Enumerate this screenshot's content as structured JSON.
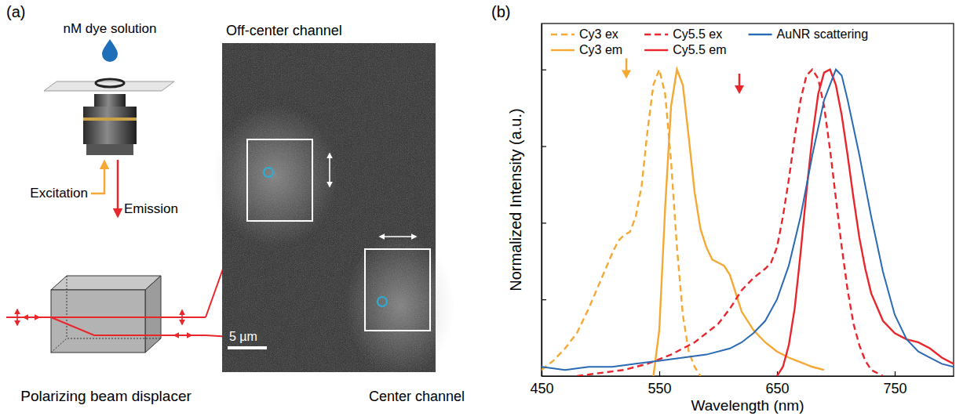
{
  "panel_labels": [
    "(a)",
    "(b)"
  ],
  "panel_a": {
    "sample": "nM dye solution",
    "excitation": "Excitation",
    "emission": "Emission",
    "optic": "Polarizing beam displacer",
    "image_top": "Off-center channel",
    "image_bottom": "Center channel",
    "scale_bar": "5 µm"
  },
  "chart_data": {
    "type": "line",
    "x_label": "Wavelength (nm)",
    "y_label": "Normalized Intensity (a.u.)",
    "xlim": [
      450,
      800
    ],
    "ylim": [
      0,
      1.15
    ],
    "xticks": [
      450,
      550,
      650,
      750
    ],
    "yticks": [
      0.25,
      0.5,
      0.75,
      1
    ],
    "tick_labels": "x",
    "grid": false,
    "legend": "top-left",
    "series": [
      {
        "name": "Cy3 ex",
        "color": "#f5a833",
        "line_style": "dashed",
        "x": [
          450,
          460,
          470,
          480,
          490,
          500,
          510,
          515,
          520,
          525,
          530,
          535,
          540,
          545,
          550,
          555,
          560,
          565,
          570,
          575,
          580,
          585
        ],
        "values": [
          0.02,
          0.05,
          0.09,
          0.14,
          0.22,
          0.31,
          0.4,
          0.44,
          0.46,
          0.47,
          0.52,
          0.62,
          0.8,
          0.95,
          1.0,
          0.92,
          0.7,
          0.42,
          0.2,
          0.08,
          0.03,
          0.0
        ]
      },
      {
        "name": "Cy3 em",
        "color": "#f5a833",
        "line_style": "solid",
        "x": [
          545,
          550,
          555,
          560,
          565,
          570,
          575,
          580,
          585,
          590,
          595,
          600,
          605,
          610,
          615,
          620,
          630,
          640,
          650,
          660,
          670,
          680,
          690
        ],
        "values": [
          0.0,
          0.15,
          0.55,
          0.88,
          1.0,
          0.95,
          0.78,
          0.6,
          0.48,
          0.42,
          0.38,
          0.37,
          0.36,
          0.33,
          0.27,
          0.21,
          0.15,
          0.11,
          0.08,
          0.06,
          0.045,
          0.03,
          0.02
        ]
      },
      {
        "name": "Cy5.5 ex",
        "color": "#e8262c",
        "line_style": "dashed",
        "x": [
          480,
          500,
          520,
          540,
          560,
          580,
          600,
          610,
          620,
          630,
          640,
          645,
          650,
          655,
          660,
          665,
          670,
          675,
          680,
          685,
          690,
          695,
          700,
          705,
          710,
          715,
          720,
          725,
          730,
          740
        ],
        "values": [
          0.0,
          0.01,
          0.02,
          0.04,
          0.07,
          0.11,
          0.17,
          0.22,
          0.28,
          0.32,
          0.35,
          0.37,
          0.42,
          0.52,
          0.64,
          0.78,
          0.9,
          0.98,
          1.0,
          0.97,
          0.88,
          0.74,
          0.58,
          0.42,
          0.28,
          0.17,
          0.1,
          0.05,
          0.02,
          0.0
        ]
      },
      {
        "name": "Cy5.5 em",
        "color": "#e8262c",
        "line_style": "solid",
        "x": [
          650,
          655,
          660,
          665,
          670,
          675,
          680,
          685,
          690,
          695,
          700,
          705,
          710,
          715,
          720,
          725,
          730,
          740,
          750,
          760,
          770,
          780,
          790,
          800
        ],
        "values": [
          0.0,
          0.03,
          0.1,
          0.22,
          0.4,
          0.6,
          0.78,
          0.92,
          0.99,
          1.0,
          0.95,
          0.85,
          0.72,
          0.58,
          0.45,
          0.35,
          0.27,
          0.18,
          0.14,
          0.12,
          0.11,
          0.09,
          0.06,
          0.04
        ]
      },
      {
        "name": "AuNR scattering",
        "color": "#2a6ab3",
        "line_style": "solid",
        "x": [
          450,
          470,
          490,
          510,
          530,
          550,
          570,
          590,
          610,
          620,
          630,
          640,
          650,
          660,
          670,
          680,
          690,
          700,
          705,
          710,
          720,
          730,
          740,
          750,
          760,
          770,
          780,
          790,
          800
        ],
        "values": [
          0.03,
          0.02,
          0.03,
          0.03,
          0.04,
          0.05,
          0.06,
          0.07,
          0.09,
          0.11,
          0.14,
          0.18,
          0.25,
          0.36,
          0.52,
          0.72,
          0.9,
          1.0,
          0.98,
          0.9,
          0.72,
          0.52,
          0.34,
          0.2,
          0.12,
          0.08,
          0.06,
          0.04,
          0.03
        ]
      }
    ],
    "arrows": [
      {
        "x": 522,
        "y": 0.97,
        "color": "#f5a833"
      },
      {
        "x": 618,
        "y": 0.92,
        "color": "#e8262c"
      }
    ]
  }
}
